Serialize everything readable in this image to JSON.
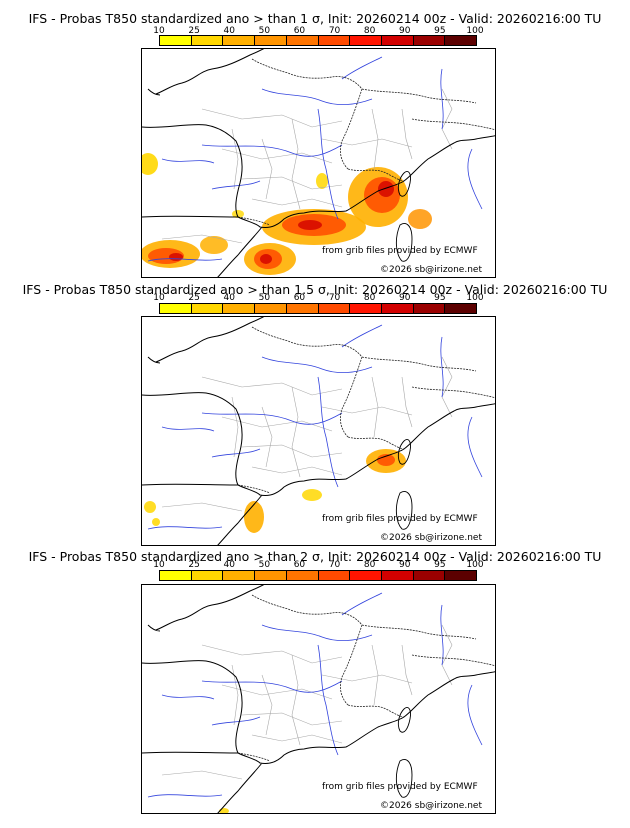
{
  "panels": [
    {
      "title": "IFS - Probas T850  standardized ano > than 1 σ, Init: 20260214 00z - Valid: 20260216:00 TU",
      "sigma": "1"
    },
    {
      "title": "IFS - Probas T850  standardized ano > than 1.5 σ, Init: 20260214 00z - Valid: 20260216:00 TU",
      "sigma": "1.5"
    },
    {
      "title": "IFS - Probas T850  standardized ano > than 2 σ, Init: 20260214 00z - Valid: 20260216:00 TU",
      "sigma": "2"
    }
  ],
  "colorbar": {
    "ticks": [
      "10",
      "25",
      "40",
      "50",
      "60",
      "70",
      "80",
      "90",
      "95",
      "100"
    ],
    "colors": [
      "#ffff00",
      "#ffd700",
      "#ffb000",
      "#ff9400",
      "#ff7400",
      "#ff4a00",
      "#ff1400",
      "#d20000",
      "#9a0000",
      "#5c0000"
    ]
  },
  "credits": {
    "source": "from grib files provided by ECMWF",
    "copyright": "©2026 sb@irizone.net"
  }
}
